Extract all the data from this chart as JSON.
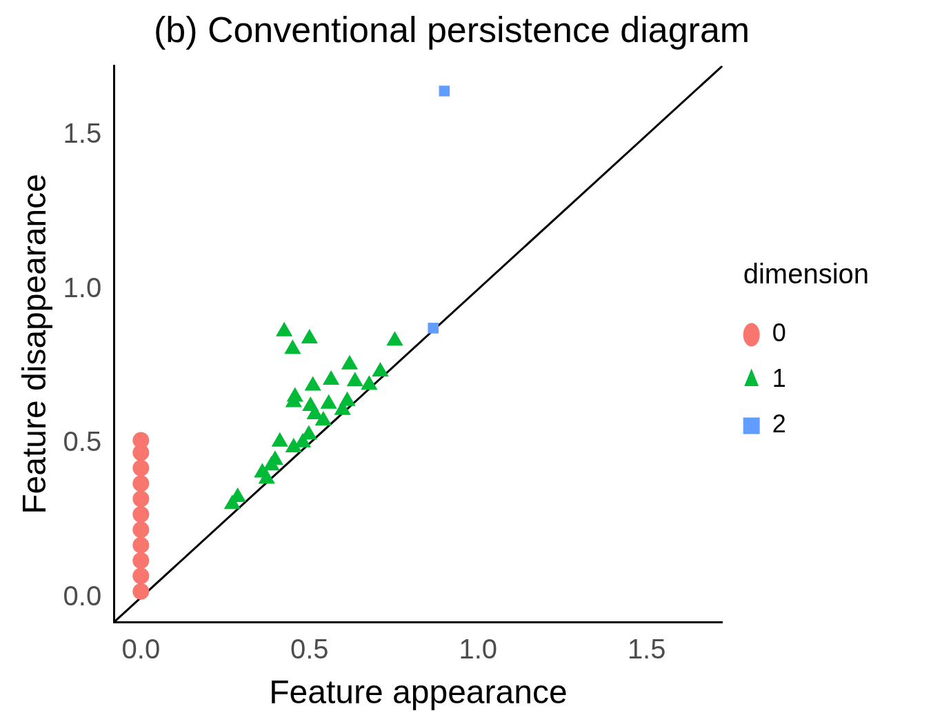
{
  "chart_data": {
    "type": "scatter",
    "title": "(b) Conventional persistence diagram",
    "xlabel": "Feature appearance",
    "ylabel": "Feature disappearance",
    "legend_title": "dimension",
    "legend": "right",
    "grid": false,
    "xlim": [
      -0.08,
      1.725
    ],
    "ylim": [
      -0.08,
      1.725
    ],
    "xticks": [
      {
        "value": 0,
        "label": "0.0"
      },
      0.5,
      {
        "value": 1,
        "label": "1.0"
      },
      1.5
    ],
    "yticks": [
      {
        "value": 0,
        "label": "0.0"
      },
      0.5,
      {
        "value": 1,
        "label": "1.0"
      },
      1.5
    ],
    "series": [
      {
        "name": "0",
        "color": "#f8766d",
        "marker": "circle",
        "x": [
          0,
          0,
          0,
          0,
          0,
          0,
          0,
          0,
          0,
          0,
          0
        ],
        "values": [
          0.02,
          0.07,
          0.12,
          0.17,
          0.22,
          0.27,
          0.32,
          0.37,
          0.42,
          0.47,
          0.51
        ]
      },
      {
        "name": "1",
        "color": "#00ba38",
        "marker": "triangle",
        "x": [
          0.425,
          0.5,
          0.45,
          0.753,
          0.619,
          0.71,
          0.564,
          0.51,
          0.635,
          0.677,
          0.457,
          0.453,
          0.503,
          0.557,
          0.612,
          0.516,
          0.541,
          0.598,
          0.412,
          0.498,
          0.48,
          0.453,
          0.398,
          0.387,
          0.36,
          0.373,
          0.287,
          0.271
        ],
        "values": [
          0.863,
          0.84,
          0.806,
          0.833,
          0.756,
          0.733,
          0.706,
          0.687,
          0.701,
          0.69,
          0.651,
          0.633,
          0.621,
          0.628,
          0.637,
          0.594,
          0.574,
          0.608,
          0.505,
          0.528,
          0.503,
          0.487,
          0.446,
          0.428,
          0.405,
          0.385,
          0.326,
          0.303
        ]
      },
      {
        "name": "2",
        "color": "#619cff",
        "marker": "square",
        "x": [
          0.9,
          0.867
        ],
        "values": [
          1.643,
          0.874
        ]
      },
      {
        "type": "line",
        "color": "#000000",
        "marker": "none",
        "x": [
          -0.08,
          1.725
        ],
        "values": [
          -0.08,
          1.725
        ]
      }
    ]
  }
}
